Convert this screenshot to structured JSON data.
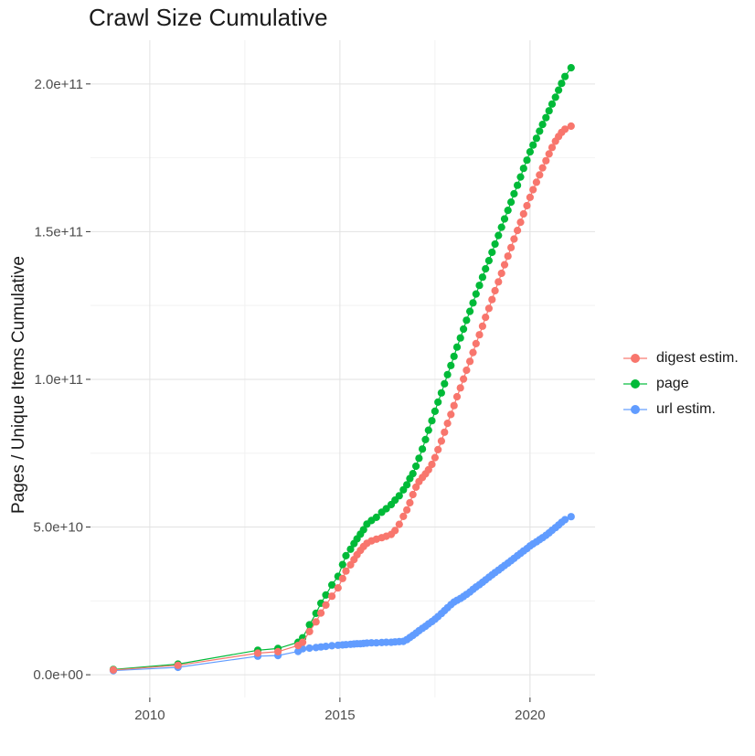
{
  "chart_data": {
    "type": "line",
    "title": "Crawl Size Cumulative",
    "xlabel": "",
    "ylabel": "Pages / Unique Items Cumulative",
    "value_unit": "billions (1e9 pages / items)",
    "grid": true,
    "legend_position": "right",
    "xlim": [
      2008.44,
      2021.71
    ],
    "ylim_e9": [
      -7.7,
      214.8
    ],
    "x_ticks": [
      {
        "v": 2010,
        "label": "2010"
      },
      {
        "v": 2015,
        "label": "2015"
      },
      {
        "v": 2020,
        "label": "2020"
      }
    ],
    "y_ticks": [
      {
        "v": 0,
        "label": "0.0e+00"
      },
      {
        "v": 50,
        "label": "5.0e+10"
      },
      {
        "v": 100,
        "label": "1.0e+11"
      },
      {
        "v": 150,
        "label": "1.5e+11"
      },
      {
        "v": 200,
        "label": "2.0e+11"
      }
    ],
    "x_minor": [
      2012.5,
      2017.5
    ],
    "y_minor_e9": [
      25,
      75,
      125,
      175
    ],
    "series": [
      {
        "name": "digest estim.",
        "color": "#F8766D",
        "points": [
          [
            2009.04,
            1.6
          ],
          [
            2010.74,
            3.2
          ],
          [
            2012.84,
            7.3
          ],
          [
            2013.37,
            7.8
          ],
          [
            2013.9,
            9.9
          ],
          [
            2014.02,
            11.0
          ],
          [
            2014.2,
            14.6
          ],
          [
            2014.37,
            17.9
          ],
          [
            2014.5,
            20.9
          ],
          [
            2014.63,
            23.6
          ],
          [
            2014.79,
            26.6
          ],
          [
            2014.95,
            29.4
          ],
          [
            2015.07,
            32.6
          ],
          [
            2015.16,
            35.1
          ],
          [
            2015.28,
            37.2
          ],
          [
            2015.37,
            39.0
          ],
          [
            2015.45,
            40.6
          ],
          [
            2015.54,
            42.1
          ],
          [
            2015.62,
            43.4
          ],
          [
            2015.71,
            44.5
          ],
          [
            2015.83,
            45.3
          ],
          [
            2015.96,
            45.9
          ],
          [
            2016.1,
            46.4
          ],
          [
            2016.22,
            46.9
          ],
          [
            2016.35,
            47.5
          ],
          [
            2016.45,
            48.8
          ],
          [
            2016.56,
            50.9
          ],
          [
            2016.67,
            53.6
          ],
          [
            2016.76,
            55.8
          ],
          [
            2016.84,
            58.2
          ],
          [
            2016.92,
            61.0
          ],
          [
            2017.0,
            63.5
          ],
          [
            2017.08,
            65.4
          ],
          [
            2017.17,
            66.8
          ],
          [
            2017.25,
            68.0
          ],
          [
            2017.33,
            69.4
          ],
          [
            2017.42,
            71.2
          ],
          [
            2017.5,
            73.5
          ],
          [
            2017.58,
            76.2
          ],
          [
            2017.67,
            79.1
          ],
          [
            2017.75,
            82.1
          ],
          [
            2017.83,
            85.1
          ],
          [
            2017.92,
            88.1
          ],
          [
            2018.0,
            91.1
          ],
          [
            2018.08,
            94.1
          ],
          [
            2018.17,
            97.1
          ],
          [
            2018.25,
            100.1
          ],
          [
            2018.33,
            103.1
          ],
          [
            2018.42,
            106.1
          ],
          [
            2018.5,
            109.1
          ],
          [
            2018.58,
            112.1
          ],
          [
            2018.67,
            115.1
          ],
          [
            2018.75,
            118.0
          ],
          [
            2018.83,
            121.0
          ],
          [
            2018.92,
            124.0
          ],
          [
            2019.0,
            127.0
          ],
          [
            2019.08,
            130.0
          ],
          [
            2019.17,
            133.0
          ],
          [
            2019.25,
            135.9
          ],
          [
            2019.33,
            138.8
          ],
          [
            2019.42,
            141.7
          ],
          [
            2019.5,
            144.6
          ],
          [
            2019.58,
            147.5
          ],
          [
            2019.67,
            150.4
          ],
          [
            2019.75,
            153.2
          ],
          [
            2019.83,
            156.0
          ],
          [
            2019.92,
            158.8
          ],
          [
            2020.0,
            161.6
          ],
          [
            2020.08,
            164.2
          ],
          [
            2020.17,
            166.7
          ],
          [
            2020.25,
            169.2
          ],
          [
            2020.33,
            171.6
          ],
          [
            2020.42,
            174.0
          ],
          [
            2020.5,
            176.3
          ],
          [
            2020.58,
            178.5
          ],
          [
            2020.67,
            180.6
          ],
          [
            2020.75,
            182.2
          ],
          [
            2020.83,
            183.6
          ],
          [
            2020.92,
            184.7
          ],
          [
            2021.08,
            185.7
          ]
        ]
      },
      {
        "name": "page",
        "color": "#00BA38",
        "points": [
          [
            2009.04,
            1.8
          ],
          [
            2010.74,
            3.6
          ],
          [
            2012.84,
            8.3
          ],
          [
            2013.37,
            8.9
          ],
          [
            2013.9,
            11.0
          ],
          [
            2014.02,
            12.5
          ],
          [
            2014.2,
            16.9
          ],
          [
            2014.37,
            20.8
          ],
          [
            2014.5,
            24.2
          ],
          [
            2014.63,
            27.0
          ],
          [
            2014.79,
            30.4
          ],
          [
            2014.95,
            33.3
          ],
          [
            2015.07,
            37.3
          ],
          [
            2015.16,
            40.3
          ],
          [
            2015.28,
            42.5
          ],
          [
            2015.37,
            44.4
          ],
          [
            2015.45,
            46.0
          ],
          [
            2015.54,
            47.6
          ],
          [
            2015.62,
            49.1
          ],
          [
            2015.71,
            51.0
          ],
          [
            2015.83,
            52.2
          ],
          [
            2015.96,
            53.3
          ],
          [
            2016.1,
            55.0
          ],
          [
            2016.22,
            56.2
          ],
          [
            2016.35,
            57.6
          ],
          [
            2016.45,
            59.1
          ],
          [
            2016.56,
            60.6
          ],
          [
            2016.67,
            62.6
          ],
          [
            2016.76,
            64.3
          ],
          [
            2016.84,
            66.4
          ],
          [
            2016.92,
            68.1
          ],
          [
            2017.0,
            70.6
          ],
          [
            2017.08,
            73.3
          ],
          [
            2017.17,
            76.4
          ],
          [
            2017.25,
            79.6
          ],
          [
            2017.33,
            82.8
          ],
          [
            2017.42,
            86.0
          ],
          [
            2017.5,
            89.2
          ],
          [
            2017.58,
            92.3
          ],
          [
            2017.67,
            95.4
          ],
          [
            2017.75,
            98.5
          ],
          [
            2017.83,
            101.6
          ],
          [
            2017.92,
            104.7
          ],
          [
            2018.0,
            107.8
          ],
          [
            2018.08,
            110.9
          ],
          [
            2018.17,
            114.0
          ],
          [
            2018.25,
            117.0
          ],
          [
            2018.33,
            120.0
          ],
          [
            2018.42,
            123.0
          ],
          [
            2018.5,
            125.9
          ],
          [
            2018.58,
            128.9
          ],
          [
            2018.67,
            131.8
          ],
          [
            2018.75,
            134.6
          ],
          [
            2018.83,
            137.4
          ],
          [
            2018.92,
            140.2
          ],
          [
            2019.0,
            143.0
          ],
          [
            2019.08,
            145.8
          ],
          [
            2019.17,
            148.7
          ],
          [
            2019.25,
            151.5
          ],
          [
            2019.33,
            154.3
          ],
          [
            2019.42,
            157.2
          ],
          [
            2019.5,
            160.0
          ],
          [
            2019.58,
            162.8
          ],
          [
            2019.67,
            165.7
          ],
          [
            2019.75,
            168.5
          ],
          [
            2019.83,
            171.4
          ],
          [
            2019.92,
            174.2
          ],
          [
            2020.0,
            177.0
          ],
          [
            2020.08,
            179.3
          ],
          [
            2020.17,
            181.6
          ],
          [
            2020.25,
            184.0
          ],
          [
            2020.33,
            186.3
          ],
          [
            2020.42,
            188.6
          ],
          [
            2020.5,
            190.9
          ],
          [
            2020.58,
            193.2
          ],
          [
            2020.67,
            195.5
          ],
          [
            2020.75,
            197.9
          ],
          [
            2020.83,
            200.2
          ],
          [
            2020.92,
            202.5
          ],
          [
            2021.08,
            205.5
          ]
        ]
      },
      {
        "name": "url estim.",
        "color": "#619CFF",
        "points": [
          [
            2009.04,
            1.4
          ],
          [
            2010.74,
            2.5
          ],
          [
            2012.84,
            6.3
          ],
          [
            2013.37,
            6.5
          ],
          [
            2013.9,
            7.9
          ],
          [
            2014.02,
            8.8
          ],
          [
            2014.2,
            9.0
          ],
          [
            2014.37,
            9.2
          ],
          [
            2014.5,
            9.4
          ],
          [
            2014.63,
            9.6
          ],
          [
            2014.79,
            9.8
          ],
          [
            2014.95,
            10.0
          ],
          [
            2015.07,
            10.1
          ],
          [
            2015.16,
            10.2
          ],
          [
            2015.28,
            10.3
          ],
          [
            2015.37,
            10.4
          ],
          [
            2015.45,
            10.5
          ],
          [
            2015.54,
            10.5
          ],
          [
            2015.62,
            10.6
          ],
          [
            2015.71,
            10.7
          ],
          [
            2015.83,
            10.8
          ],
          [
            2015.96,
            10.8
          ],
          [
            2016.1,
            10.9
          ],
          [
            2016.22,
            11.0
          ],
          [
            2016.35,
            11.0
          ],
          [
            2016.45,
            11.1
          ],
          [
            2016.56,
            11.2
          ],
          [
            2016.67,
            11.3
          ],
          [
            2016.76,
            11.9
          ],
          [
            2016.84,
            12.6
          ],
          [
            2016.92,
            13.3
          ],
          [
            2017.0,
            14.1
          ],
          [
            2017.08,
            14.9
          ],
          [
            2017.17,
            15.7
          ],
          [
            2017.25,
            16.4
          ],
          [
            2017.33,
            17.2
          ],
          [
            2017.42,
            18.0
          ],
          [
            2017.5,
            18.8
          ],
          [
            2017.58,
            19.7
          ],
          [
            2017.67,
            20.7
          ],
          [
            2017.75,
            21.7
          ],
          [
            2017.83,
            22.7
          ],
          [
            2017.92,
            23.7
          ],
          [
            2018.0,
            24.6
          ],
          [
            2018.08,
            25.2
          ],
          [
            2018.17,
            25.8
          ],
          [
            2018.25,
            26.5
          ],
          [
            2018.33,
            27.2
          ],
          [
            2018.42,
            28.0
          ],
          [
            2018.5,
            28.9
          ],
          [
            2018.58,
            29.7
          ],
          [
            2018.67,
            30.5
          ],
          [
            2018.75,
            31.3
          ],
          [
            2018.83,
            32.1
          ],
          [
            2018.92,
            33.0
          ],
          [
            2019.0,
            33.8
          ],
          [
            2019.08,
            34.6
          ],
          [
            2019.17,
            35.4
          ],
          [
            2019.25,
            36.2
          ],
          [
            2019.33,
            37.0
          ],
          [
            2019.42,
            37.8
          ],
          [
            2019.5,
            38.6
          ],
          [
            2019.58,
            39.4
          ],
          [
            2019.67,
            40.3
          ],
          [
            2019.75,
            41.1
          ],
          [
            2019.83,
            41.9
          ],
          [
            2019.92,
            42.7
          ],
          [
            2020.0,
            43.6
          ],
          [
            2020.08,
            44.3
          ],
          [
            2020.17,
            45.0
          ],
          [
            2020.25,
            45.7
          ],
          [
            2020.33,
            46.4
          ],
          [
            2020.42,
            47.2
          ],
          [
            2020.5,
            48.0
          ],
          [
            2020.58,
            48.9
          ],
          [
            2020.67,
            49.8
          ],
          [
            2020.75,
            50.7
          ],
          [
            2020.83,
            51.6
          ],
          [
            2020.92,
            52.5
          ],
          [
            2021.08,
            53.5
          ]
        ]
      }
    ],
    "style": {
      "grid_major_color": "#e2e2e2",
      "grid_minor_color": "#f2f2f2",
      "tick_color": "#333333",
      "tick_label_color": "#4d4d4d",
      "point_radius": 4.1
    }
  }
}
